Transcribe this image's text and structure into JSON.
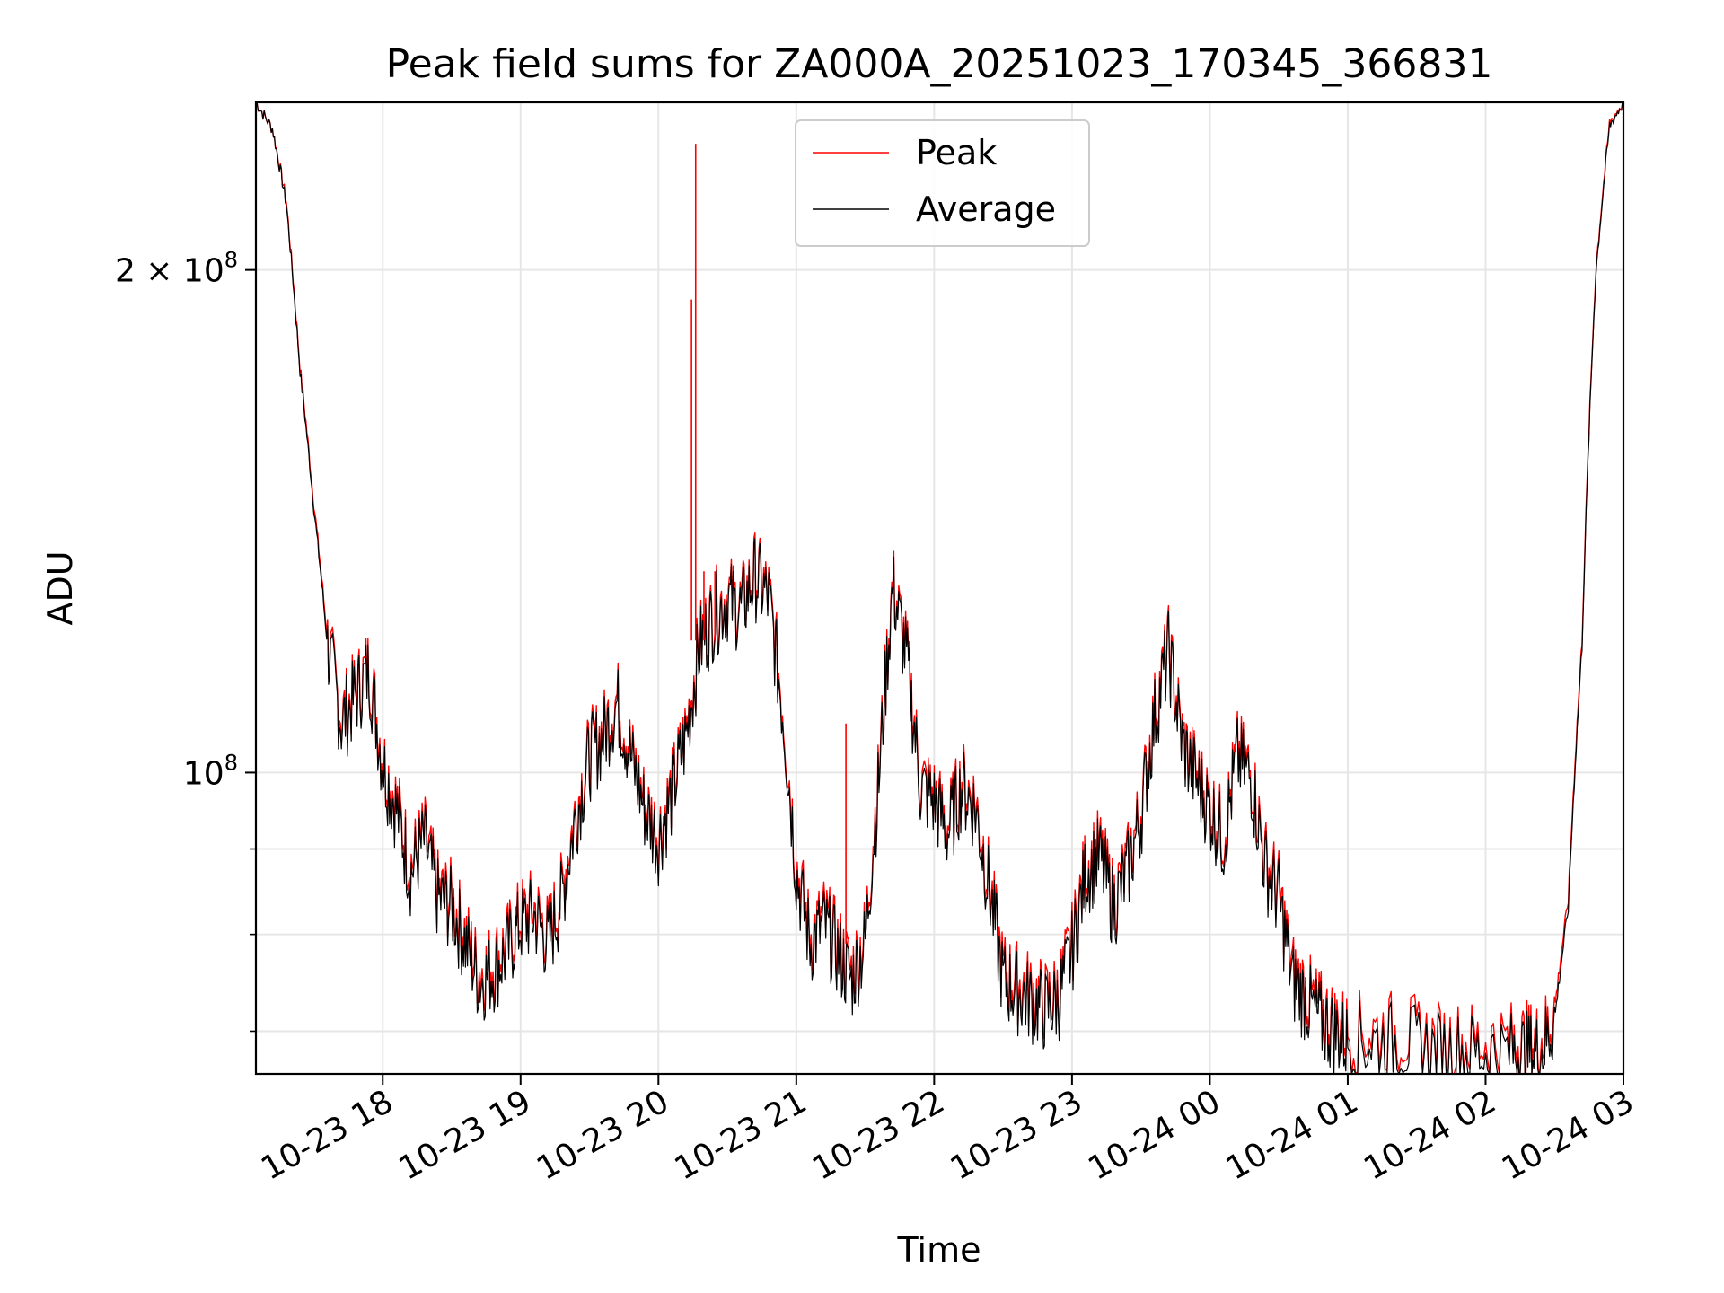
{
  "chart_data": {
    "type": "line",
    "title": "Peak field sums for ZA000A_20251023_170345_366831",
    "xlabel": "Time",
    "ylabel": "ADU",
    "yscale": "log",
    "ylim": [
      66000000,
      252000000
    ],
    "xlim_hours": [
      17.08,
      27.0
    ],
    "grid": true,
    "legend_position": "upper center",
    "x_ticks": [
      {
        "h": 18,
        "label": "10-23 18"
      },
      {
        "h": 19,
        "label": "10-23 19"
      },
      {
        "h": 20,
        "label": "10-23 20"
      },
      {
        "h": 21,
        "label": "10-23 21"
      },
      {
        "h": 22,
        "label": "10-23 22"
      },
      {
        "h": 23,
        "label": "10-23 23"
      },
      {
        "h": 24,
        "label": "10-24 00"
      },
      {
        "h": 25,
        "label": "10-24 01"
      },
      {
        "h": 26,
        "label": "10-24 02"
      },
      {
        "h": 27,
        "label": "10-24 03"
      }
    ],
    "y_major_ticks": [
      {
        "value": 100000000,
        "base": "10",
        "exp": "8"
      },
      {
        "value": 200000000,
        "base": "2 × 10",
        "exp": "8"
      }
    ],
    "y_minor_ticks": [
      70000000,
      80000000,
      90000000
    ],
    "x_hours": [
      17.08,
      17.2,
      17.3,
      17.4,
      17.5,
      17.6,
      17.7,
      17.8,
      17.9,
      18.0,
      18.1,
      18.2,
      18.3,
      18.4,
      18.5,
      18.6,
      18.7,
      18.8,
      18.9,
      19.0,
      19.1,
      19.2,
      19.3,
      19.4,
      19.5,
      19.6,
      19.7,
      19.8,
      19.9,
      20.0,
      20.1,
      20.2,
      20.3,
      20.4,
      20.5,
      20.6,
      20.7,
      20.8,
      20.9,
      21.0,
      21.1,
      21.2,
      21.3,
      21.4,
      21.5,
      21.6,
      21.7,
      21.8,
      21.9,
      22.0,
      22.1,
      22.2,
      22.3,
      22.4,
      22.5,
      22.6,
      22.7,
      22.8,
      22.9,
      23.0,
      23.1,
      23.2,
      23.3,
      23.4,
      23.5,
      23.6,
      23.7,
      23.8,
      23.9,
      24.0,
      24.1,
      24.2,
      24.3,
      24.4,
      24.5,
      24.6,
      24.7,
      24.8,
      24.9,
      25.0,
      25.2,
      25.4,
      25.6,
      25.8,
      26.0,
      26.2,
      26.3,
      26.4,
      26.5,
      26.6,
      26.7,
      26.8,
      26.9,
      27.0
    ],
    "series": [
      {
        "name": "Peak",
        "color": "#ff0000",
        "values": [
          252,
          243,
          220,
          175,
          145,
          120,
          108,
          112,
          116,
          102,
          96,
          88,
          92,
          85,
          84,
          80,
          76,
          77,
          79,
          82,
          83,
          80,
          85,
          95,
          103,
          106,
          111,
          103,
          96,
          92,
          98,
          106,
          120,
          125,
          128,
          126,
          132,
          128,
          110,
          88,
          80,
          82,
          79,
          76,
          80,
          100,
          130,
          118,
          99,
          97,
          93,
          99,
          96,
          86,
          76,
          75,
          74,
          73,
          74,
          79,
          88,
          90,
          84,
          88,
          95,
          109,
          119,
          105,
          100,
          96,
          92,
          103,
          100,
          89,
          85,
          76,
          74,
          72,
          71,
          70,
          70,
          70,
          69,
          69,
          69,
          69,
          69,
          69,
          72,
          84,
          120,
          200,
          245,
          252
        ]
      },
      {
        "name": "Average",
        "color": "#000000",
        "values": [
          252,
          243,
          219,
          174,
          144,
          119,
          107,
          111,
          115,
          101,
          95,
          87,
          91,
          84,
          83,
          79,
          75,
          76,
          78,
          81,
          82,
          79,
          84,
          94,
          102,
          105,
          110,
          102,
          95,
          91,
          97,
          105,
          119,
          124,
          127,
          125,
          131,
          127,
          109,
          87,
          79,
          81,
          78,
          75,
          79,
          99,
          129,
          117,
          98,
          96,
          92,
          98,
          95,
          85,
          75,
          74,
          73,
          72,
          73,
          78,
          87,
          89,
          83,
          87,
          94,
          108,
          118,
          104,
          99,
          95,
          91,
          102,
          99,
          88,
          84,
          75,
          73,
          71,
          70,
          69,
          69,
          69,
          68,
          68,
          68,
          68,
          68,
          68,
          71,
          83,
          119,
          199,
          244,
          252
        ]
      }
    ],
    "peak_spikes": [
      {
        "h": 20.24,
        "value": 192
      },
      {
        "h": 20.27,
        "value": 238
      },
      {
        "h": 20.33,
        "value": 132
      },
      {
        "h": 20.41,
        "value": 132
      },
      {
        "h": 21.36,
        "value": 107
      }
    ]
  }
}
